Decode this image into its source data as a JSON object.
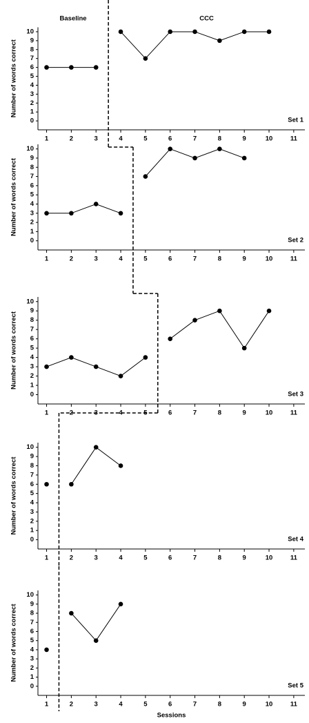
{
  "chart_data": [
    {
      "type": "line",
      "phases": [
        "Baseline",
        "CCC"
      ],
      "y_label": "Number of words correct",
      "set_label": "Set 1",
      "x": [
        1,
        2,
        3,
        4,
        5,
        6,
        7,
        8,
        9,
        10,
        11
      ],
      "xlim": [
        0.65,
        11.45
      ],
      "ylim": [
        -1,
        10.5
      ],
      "yticks": [
        0,
        1,
        2,
        3,
        4,
        5,
        6,
        7,
        8,
        9,
        10
      ],
      "phase_change": 3.5,
      "series": [
        {
          "color": "#000000",
          "values": [
            6,
            6,
            6,
            null,
            null,
            null,
            null,
            null,
            null,
            null,
            null
          ]
        },
        {
          "color": "#000000",
          "values": [
            null,
            null,
            null,
            10,
            7,
            10,
            10,
            9,
            10,
            10,
            null
          ]
        }
      ]
    },
    {
      "type": "line",
      "y_label": "Number of words correct",
      "set_label": "Set 2",
      "x": [
        1,
        2,
        3,
        4,
        5,
        6,
        7,
        8,
        9,
        10,
        11
      ],
      "xlim": [
        0.65,
        11.45
      ],
      "ylim": [
        -1,
        10.5
      ],
      "yticks": [
        0,
        1,
        2,
        3,
        4,
        5,
        6,
        7,
        8,
        9,
        10
      ],
      "phase_change": 4.5,
      "series": [
        {
          "color": "#000000",
          "values": [
            3,
            3,
            4,
            3,
            null,
            null,
            null,
            null,
            null,
            null,
            null
          ]
        },
        {
          "color": "#000000",
          "values": [
            null,
            null,
            null,
            null,
            7,
            10,
            9,
            10,
            9,
            null,
            null
          ]
        }
      ]
    },
    {
      "type": "line",
      "y_label": "Number of words correct",
      "set_label": "Set 3",
      "x": [
        1,
        2,
        3,
        4,
        5,
        6,
        7,
        8,
        9,
        10,
        11
      ],
      "xlim": [
        0.65,
        11.45
      ],
      "ylim": [
        -1,
        10.5
      ],
      "yticks": [
        0,
        1,
        2,
        3,
        4,
        5,
        6,
        7,
        8,
        9,
        10
      ],
      "phase_change": 5.5,
      "series": [
        {
          "color": "#000000",
          "values": [
            3,
            4,
            3,
            2,
            4,
            null,
            null,
            null,
            null,
            null,
            null
          ]
        },
        {
          "color": "#000000",
          "values": [
            null,
            null,
            null,
            null,
            null,
            6,
            8,
            9,
            5,
            9,
            null
          ]
        }
      ]
    },
    {
      "type": "line",
      "y_label": "Number of words correct",
      "set_label": "Set 4",
      "x": [
        1,
        2,
        3,
        4,
        5,
        6,
        7,
        8,
        9,
        10,
        11
      ],
      "xlim": [
        0.65,
        11.45
      ],
      "ylim": [
        -1,
        10.5
      ],
      "yticks": [
        0,
        1,
        2,
        3,
        4,
        5,
        6,
        7,
        8,
        9,
        10
      ],
      "phase_change": 1.5,
      "series": [
        {
          "color": "#000000",
          "values": [
            6,
            null,
            null,
            null,
            null,
            null,
            null,
            null,
            null,
            null,
            null
          ]
        },
        {
          "color": "#000000",
          "values": [
            null,
            6,
            10,
            8,
            null,
            null,
            null,
            null,
            null,
            null,
            null
          ]
        }
      ]
    },
    {
      "type": "line",
      "y_label": "Number of words correct",
      "set_label": "Set 5",
      "x_label": "Sessions",
      "x": [
        1,
        2,
        3,
        4,
        5,
        6,
        7,
        8,
        9,
        10,
        11
      ],
      "xlim": [
        0.65,
        11.45
      ],
      "ylim": [
        -1,
        10.5
      ],
      "yticks": [
        0,
        1,
        2,
        3,
        4,
        5,
        6,
        7,
        8,
        9,
        10
      ],
      "phase_change": 1.5,
      "series": [
        {
          "color": "#000000",
          "values": [
            4,
            null,
            null,
            null,
            null,
            null,
            null,
            null,
            null,
            null,
            null
          ]
        },
        {
          "color": "#000000",
          "values": [
            null,
            8,
            5,
            9,
            null,
            null,
            null,
            null,
            null,
            null,
            null
          ]
        }
      ]
    }
  ]
}
